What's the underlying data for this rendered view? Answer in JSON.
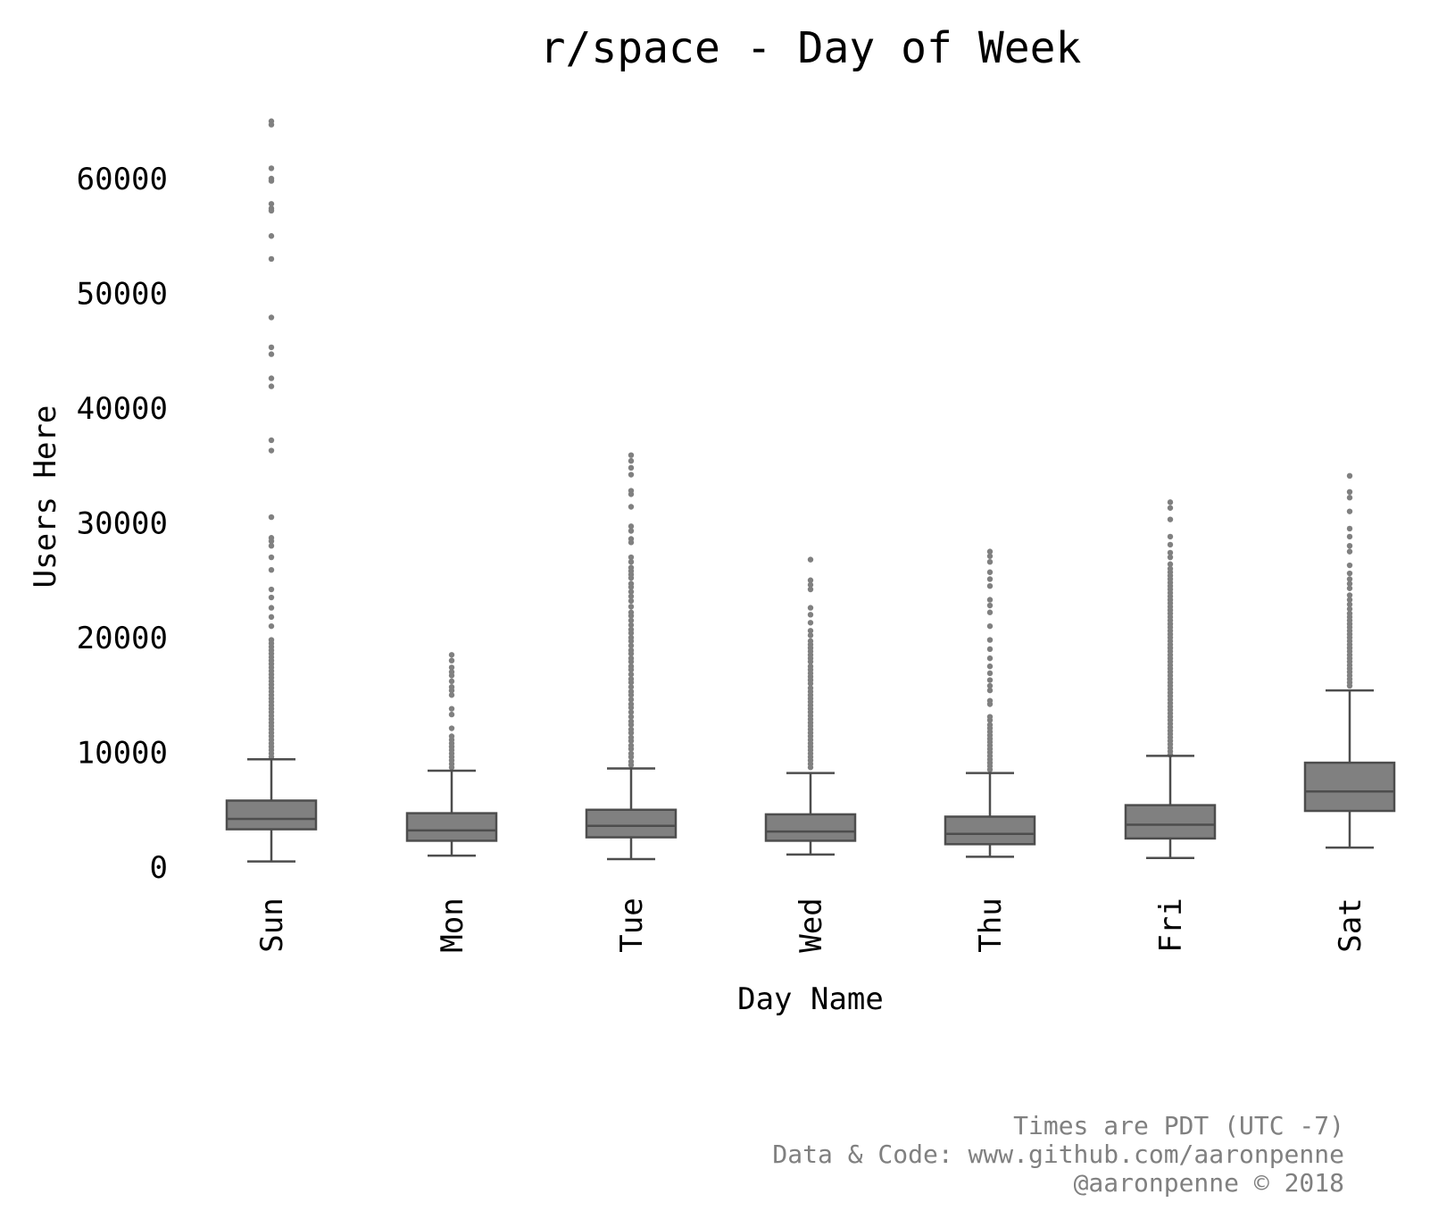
{
  "chart_data": {
    "type": "box",
    "title": "r/space - Day of Week",
    "xlabel": "Day Name",
    "ylabel": "Users Here",
    "categories": [
      "Sun",
      "Mon",
      "Tue",
      "Wed",
      "Thu",
      "Fri",
      "Sat"
    ],
    "y_ticks": [
      0,
      10000,
      20000,
      30000,
      40000,
      50000,
      60000
    ],
    "y_tick_labels": [
      "0",
      "10000",
      "20000",
      "30000",
      "40000",
      "50000",
      "60000"
    ],
    "ylim": [
      -3000,
      67000
    ],
    "grid": false,
    "box_color": "#808080",
    "line_color": "#4d4d4d",
    "outlier_color": "#808080",
    "boxes": [
      {
        "category": "Sun",
        "whisker_low": 500,
        "q1": 3300,
        "median": 4200,
        "q3": 5800,
        "whisker_high": 9400,
        "outliers": [
          65000,
          64700,
          60900,
          60000,
          59800,
          57800,
          57400,
          57200,
          55000,
          53000,
          47900,
          45300,
          44700,
          42600,
          41900,
          37200,
          36300,
          30500,
          28700,
          28400,
          28000,
          27000,
          25900,
          24200,
          23500,
          22600,
          21800,
          21000,
          19800,
          19500,
          19200,
          18900,
          18600,
          18300,
          18000,
          17700,
          17400,
          17100,
          16800,
          16500,
          16200,
          15900,
          15600,
          15300,
          15000,
          14700,
          14400,
          14100,
          13800,
          13500,
          13200,
          12900,
          12600,
          12300,
          12000,
          11700,
          11400,
          11100,
          10800,
          10500,
          10200,
          9900,
          9600
        ]
      },
      {
        "category": "Mon",
        "whisker_low": 1000,
        "q1": 2300,
        "median": 3200,
        "q3": 4700,
        "whisker_high": 8400,
        "outliers": [
          18500,
          18000,
          17400,
          17000,
          16700,
          16200,
          15700,
          15400,
          15000,
          13800,
          13300,
          12100,
          11400,
          11100,
          10800,
          10500,
          10200,
          9900,
          9600,
          9300,
          9000,
          8700
        ]
      },
      {
        "category": "Tue",
        "whisker_low": 700,
        "q1": 2600,
        "median": 3600,
        "q3": 5000,
        "whisker_high": 8600,
        "outliers": [
          35900,
          35400,
          34800,
          34200,
          32800,
          32500,
          31400,
          29700,
          29300,
          28600,
          28300,
          27000,
          26600,
          26100,
          25800,
          25500,
          25200,
          24700,
          24400,
          24000,
          23600,
          23200,
          22700,
          22200,
          21900,
          21500,
          21100,
          20700,
          20400,
          20000,
          19700,
          19300,
          18900,
          18600,
          18200,
          17900,
          17500,
          17200,
          16800,
          16400,
          16100,
          15700,
          15300,
          15000,
          14600,
          14200,
          13900,
          13500,
          13100,
          12700,
          12400,
          12000,
          11700,
          11300,
          11000,
          10600,
          10300,
          9900,
          9600,
          9200,
          8900
        ]
      },
      {
        "category": "Wed",
        "whisker_low": 1100,
        "q1": 2300,
        "median": 3100,
        "q3": 4600,
        "whisker_high": 8200,
        "outliers": [
          26800,
          25000,
          24600,
          24200,
          22600,
          22000,
          21300,
          20600,
          20200,
          19700,
          19400,
          19100,
          18800,
          18500,
          18200,
          17900,
          17500,
          17200,
          16900,
          16600,
          16300,
          16000,
          15600,
          15300,
          15000,
          14700,
          14400,
          14100,
          13800,
          13500,
          13200,
          12900,
          12600,
          12300,
          12000,
          11700,
          11400,
          11100,
          10800,
          10500,
          10200,
          9900,
          9600,
          9300,
          9000,
          8700
        ]
      },
      {
        "category": "Thu",
        "whisker_low": 900,
        "q1": 2000,
        "median": 2900,
        "q3": 4400,
        "whisker_high": 8200,
        "outliers": [
          27500,
          27100,
          26600,
          25700,
          25100,
          24500,
          23300,
          22800,
          22200,
          21000,
          19800,
          19000,
          18200,
          17500,
          16900,
          16300,
          15800,
          15400,
          14500,
          14200,
          13100,
          12800,
          12400,
          12100,
          11800,
          11500,
          11200,
          10900,
          10600,
          10300,
          10000,
          9700,
          9400,
          9100,
          8800,
          8500
        ]
      },
      {
        "category": "Fri",
        "whisker_low": 800,
        "q1": 2500,
        "median": 3700,
        "q3": 5400,
        "whisker_high": 9700,
        "outliers": [
          31800,
          31300,
          30300,
          28800,
          28100,
          27400,
          27000,
          26400,
          26000,
          25700,
          25400,
          25100,
          24800,
          24500,
          24200,
          23900,
          23600,
          23300,
          23000,
          22700,
          22400,
          22100,
          21800,
          21500,
          21200,
          20900,
          20600,
          20300,
          20000,
          19700,
          19400,
          19100,
          18800,
          18500,
          18200,
          17900,
          17600,
          17300,
          17000,
          16700,
          16400,
          16100,
          15800,
          15500,
          15200,
          14900,
          14600,
          14300,
          14000,
          13700,
          13400,
          13100,
          12800,
          12500,
          12200,
          11900,
          11600,
          11300,
          11000,
          10700,
          10400,
          10100,
          9800
        ]
      },
      {
        "category": "Sat",
        "whisker_low": 1700,
        "q1": 4900,
        "median": 6600,
        "q3": 9100,
        "whisker_high": 15400,
        "outliers": [
          34100,
          32700,
          32200,
          31000,
          29500,
          28800,
          28000,
          27500,
          26300,
          25600,
          25100,
          24700,
          24300,
          23700,
          23300,
          22900,
          22500,
          22100,
          21800,
          21500,
          21200,
          20900,
          20600,
          20300,
          20000,
          19700,
          19400,
          19100,
          18800,
          18500,
          18200,
          17900,
          17600,
          17300,
          17000,
          16700,
          16400,
          16100,
          15800
        ]
      }
    ]
  },
  "footer": {
    "line1": "Times are PDT (UTC -7)",
    "line2": "Data & Code: www.github.com/aaronpenne",
    "line3": "@aaronpenne © 2018",
    "color": "#808080"
  }
}
